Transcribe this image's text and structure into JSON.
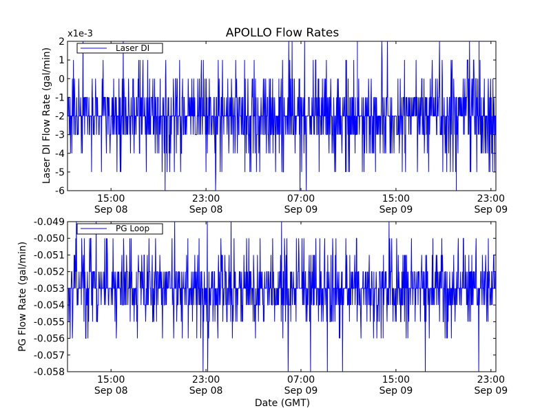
{
  "chart_data": {
    "type": "line",
    "title": "APOLLO Flow Rates",
    "xlabel": "Date (GMT)",
    "x_tick_labels": [
      [
        "15:00",
        "Sep 08"
      ],
      [
        "23:00",
        "Sep 08"
      ],
      [
        "07:00",
        "Sep 09"
      ],
      [
        "15:00",
        "Sep 09"
      ],
      [
        "23:00",
        "Sep 09"
      ]
    ],
    "xlim": [
      "2011-09-08 11:20",
      "2011-09-09 23:25"
    ],
    "x_ticks": [
      "2011-09-08 15:00",
      "2011-09-08 23:00",
      "2011-09-09 07:00",
      "2011-09-09 15:00",
      "2011-09-09 23:00"
    ],
    "panels": [
      {
        "ylabel": "Laser DI Flow Rate (gal/min)",
        "ylim": [
          -6,
          2
        ],
        "y_ticks": [
          2,
          1,
          0,
          -1,
          -2,
          -3,
          -4,
          -5,
          -6
        ],
        "y_tick_labels": [
          "2",
          "1",
          "0",
          "-1",
          "-2",
          "-3",
          "-4",
          "-5",
          "-6"
        ],
        "offset_label": "x1e-3",
        "legend": "upper left",
        "grid": false,
        "series": [
          {
            "name": "Laser DI",
            "color": "#0000ff",
            "levels": [
              -1,
              -2,
              -3,
              -4,
              0,
              1,
              -5,
              2,
              -6
            ],
            "band_low": -3,
            "band_high": -1,
            "min": -6,
            "max": 2,
            "peak_events": [
              {
                "time": "2011-09-09 11:45",
                "value": 2
              },
              {
                "time": "2011-09-09 22:00",
                "value": 2
              }
            ],
            "dip_events": [
              {
                "time": "2011-09-09 20:05",
                "value": -6
              }
            ]
          }
        ]
      },
      {
        "ylabel": "PG Flow Rate (gal/min)",
        "ylim": [
          -0.058,
          -0.049
        ],
        "y_ticks": [
          -0.049,
          -0.05,
          -0.051,
          -0.052,
          -0.053,
          -0.054,
          -0.055,
          -0.056,
          -0.057,
          -0.058
        ],
        "y_tick_labels": [
          "-0.049",
          "-0.050",
          "-0.051",
          "-0.052",
          "-0.053",
          "-0.054",
          "-0.055",
          "-0.056",
          "-0.057",
          "-0.058"
        ],
        "legend": "upper left",
        "grid": false,
        "series": [
          {
            "name": "PG Loop",
            "color": "#0000ff",
            "levels": [
              -0.052,
              -0.053,
              -0.054,
              -0.051,
              -0.055,
              -0.056,
              -0.05,
              -0.057,
              -0.049,
              -0.058
            ],
            "band_low": -0.054,
            "band_high": -0.052,
            "min": -0.058,
            "max": -0.049
          }
        ]
      }
    ]
  }
}
